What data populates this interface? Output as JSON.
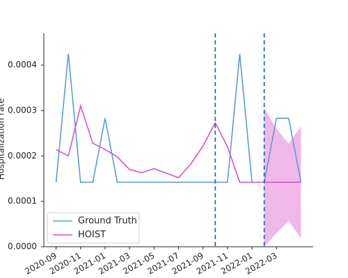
{
  "chart_data": {
    "type": "line",
    "y_label": "Hospitalization rate",
    "x": [
      "2020-09",
      "2020-10",
      "2020-11",
      "2020-12",
      "2021-01",
      "2021-02",
      "2021-03",
      "2021-04",
      "2021-05",
      "2021-06",
      "2021-07",
      "2021-08",
      "2021-09",
      "2021-10",
      "2021-11",
      "2021-12",
      "2022-01",
      "2022-02",
      "2022-03",
      "2022-04",
      "2022-05"
    ],
    "series": [
      {
        "name": "Ground Truth",
        "color": "#5b9bd5",
        "values": [
          0.000142,
          0.000425,
          0.000142,
          0.000142,
          0.000283,
          0.000142,
          0.000142,
          0.000142,
          0.000142,
          0.000142,
          0.000142,
          0.000142,
          0.000142,
          0.000142,
          0.000142,
          0.000425,
          0.000142,
          0.000142,
          0.000283,
          0.000283,
          0.000142
        ]
      },
      {
        "name": "HOIST",
        "color": "#d452c8",
        "values": [
          0.000214,
          0.0002,
          0.00031,
          0.000228,
          0.000214,
          0.000198,
          0.00017,
          0.000163,
          0.000172,
          0.000162,
          0.000152,
          0.000182,
          0.000222,
          0.000273,
          0.00022,
          0.000142,
          0.000142,
          0.000142,
          0.000142,
          0.000142,
          0.000142
        ]
      }
    ],
    "band": {
      "color": "#f0b8e8",
      "x": [
        "2022-02",
        "2022-03",
        "2022-04",
        "2022-05"
      ],
      "lower": [
        0,
        3e-05,
        5.7e-05,
        1.8e-05
      ],
      "upper": [
        0.000305,
        0.00026,
        0.000227,
        0.000265
      ]
    },
    "vlines": {
      "color": "#1f6fb4",
      "x": [
        "2021-10",
        "2022-02"
      ]
    },
    "xlim": [
      "2020-08",
      "2022-06"
    ],
    "xticks": [
      "2020-09",
      "2020-11",
      "2021-01",
      "2021-03",
      "2021-05",
      "2021-07",
      "2021-09",
      "2021-11",
      "2022-01",
      "2022-03"
    ],
    "ylim": [
      0,
      0.00047
    ],
    "yticks": [
      {
        "value": 0,
        "label": "0.0000"
      },
      {
        "value": 0.0001,
        "label": "0.0001"
      },
      {
        "value": 0.0002,
        "label": "0.0002"
      },
      {
        "value": 0.0003,
        "label": "0.0003"
      },
      {
        "value": 0.0004,
        "label": "0.0004"
      }
    ],
    "legend": "lower left"
  }
}
